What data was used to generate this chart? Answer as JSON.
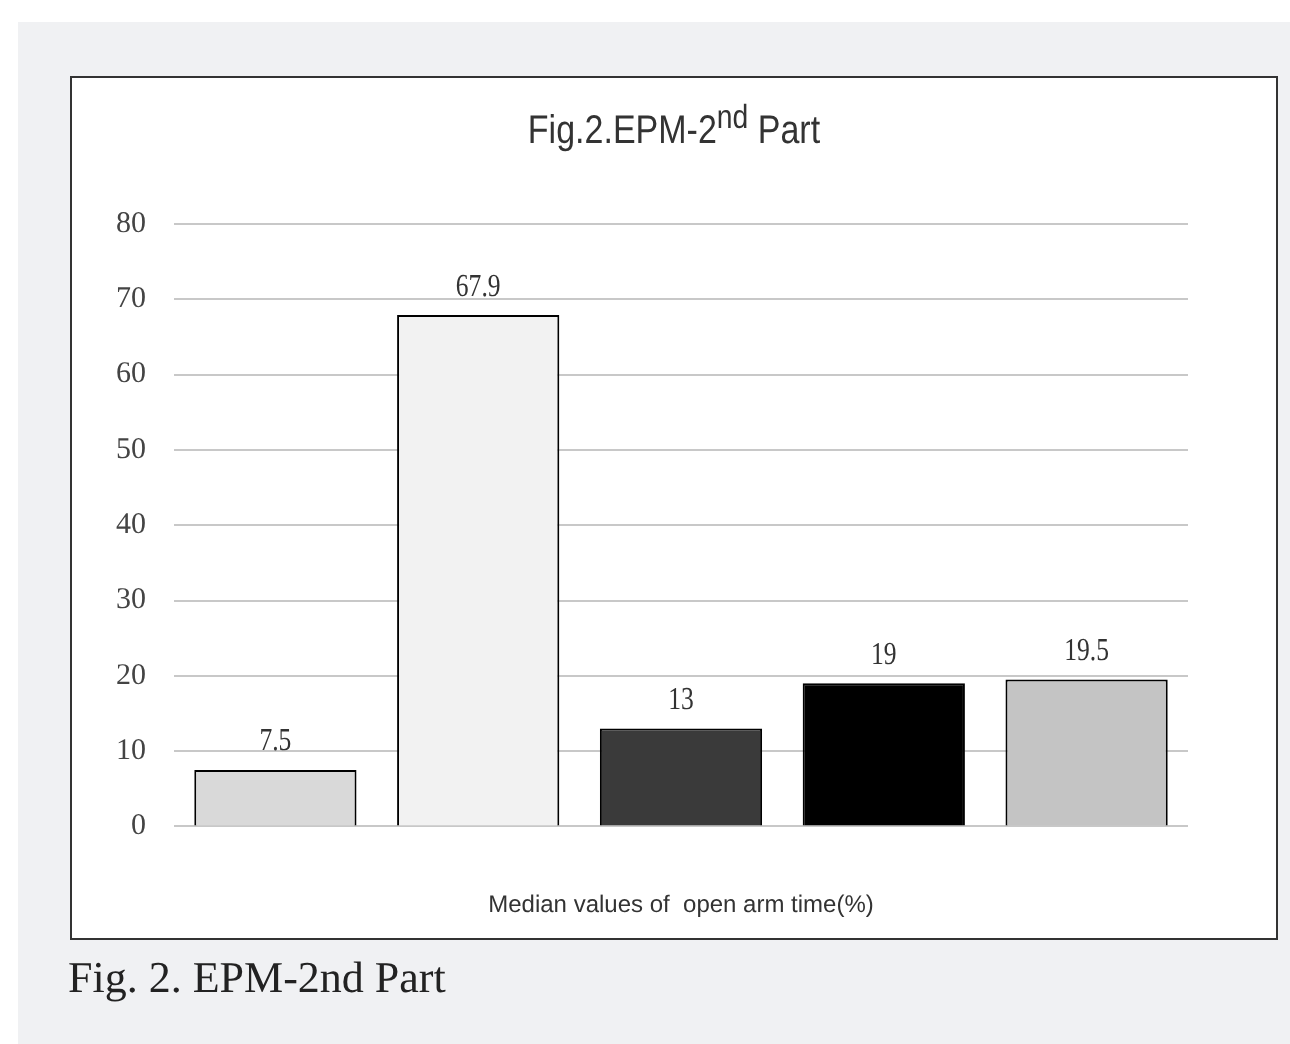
{
  "chart_data": {
    "type": "bar",
    "title": "Fig.2.EPM-2$^{nd}$ Part",
    "xlabel": "Median values of  open arm time(%)",
    "categories": [
      null,
      null,
      null,
      null,
      null
    ],
    "values": [
      7.5,
      67.9,
      13,
      19,
      19.5
    ],
    "colors": [
      "#d9d9d9",
      "#f2f2f2",
      "#3a3a3a",
      "#000000",
      "#c4c4c4"
    ],
    "ylim": [
      0,
      80
    ],
    "yticks": [
      0,
      10,
      20,
      30,
      40,
      50,
      60,
      70,
      80
    ],
    "grid": "y",
    "data_labels": true,
    "annotations": [
      "Fig. 2. EPM-2nd Part"
    ]
  }
}
